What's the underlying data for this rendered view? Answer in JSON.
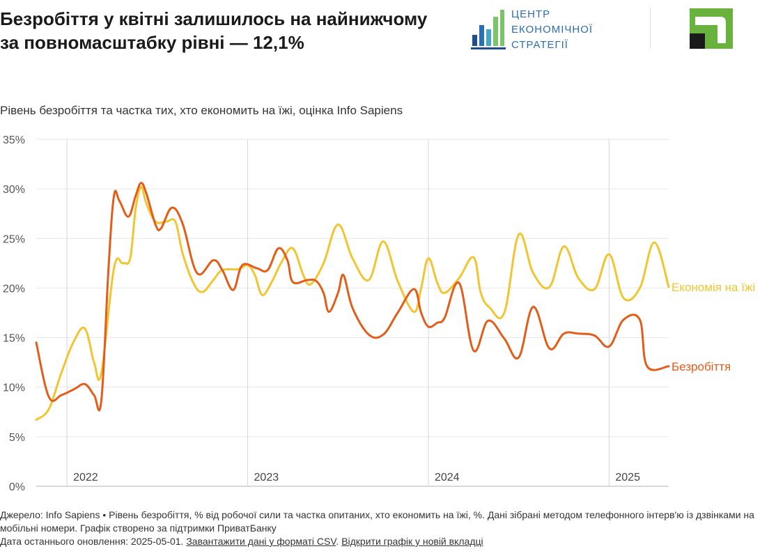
{
  "title": "Безробіття у квітні залишилось на найнижчому за повномасштабку рівні — 12,1%",
  "subtitle": "Рівень безробіття та частка тих, хто економить на їжі, оцінка Info Sapiens",
  "logo_cse": {
    "lines": [
      "ЦЕНТР",
      "ЕКОНОМІЧНОЇ",
      "СТРАТЕГІЇ"
    ],
    "color": "#2a6fb0",
    "bar_colors": [
      "#1f4e8c",
      "#2a6fb0",
      "#4aa3c8",
      "#7cc46b"
    ]
  },
  "logo_pb": {
    "name": "privatbank-logo",
    "color": "#6ab23e"
  },
  "footer": {
    "source": "Джерело: Info Sapiens • Рівень безробіття, % від робочої сили та частка опитаних, хто економить на їжі, %. Дані зібрані методом телефонного інтерв'ю із дзвінками на мобільні номери. Графік створено за підтримки ПриватБанку",
    "updated": "Дата останнього оновлення: 2025-05-01.",
    "download_link": "Завантажити дані у форматі CSV",
    "open_link": "Відкрити графік у новій вкладці"
  },
  "chart_data": {
    "type": "line",
    "title": "Безробіття у квітні залишилось на найнижчому за повномасштабку рівні — 12,1%",
    "subtitle": "Рівень безробіття та частка тих, хто економить на їжі, оцінка Info Sapiens",
    "xlim": [
      2021.83,
      2025.33
    ],
    "ylim": [
      0,
      35
    ],
    "y_ticks": [
      0,
      5,
      10,
      15,
      20,
      25,
      30,
      35
    ],
    "y_tick_labels": [
      "0%",
      "5%",
      "10%",
      "15%",
      "20%",
      "25%",
      "30%",
      "35%"
    ],
    "x_ticks": [
      2022,
      2023,
      2024,
      2025
    ],
    "x_tick_labels": [
      "2022",
      "2023",
      "2024",
      "2025"
    ],
    "grid": true,
    "legend": "direct labels at line ends (right)",
    "series": [
      {
        "name": "Економія на їжі",
        "color": "#f2c530",
        "points": [
          [
            2021.83,
            6.7
          ],
          [
            2021.9,
            7.8
          ],
          [
            2021.97,
            11.5
          ],
          [
            2022.04,
            14.7
          ],
          [
            2022.1,
            15.9
          ],
          [
            2022.15,
            12.5
          ],
          [
            2022.19,
            11.4
          ],
          [
            2022.26,
            22.0
          ],
          [
            2022.31,
            22.5
          ],
          [
            2022.35,
            23.0
          ],
          [
            2022.38,
            28.0
          ],
          [
            2022.41,
            30.2
          ],
          [
            2022.44,
            28.5
          ],
          [
            2022.49,
            26.7
          ],
          [
            2022.55,
            26.7
          ],
          [
            2022.6,
            26.7
          ],
          [
            2022.64,
            23.5
          ],
          [
            2022.7,
            20.5
          ],
          [
            2022.75,
            19.6
          ],
          [
            2022.81,
            20.8
          ],
          [
            2022.86,
            21.8
          ],
          [
            2022.95,
            21.9
          ],
          [
            2023.0,
            22.3
          ],
          [
            2023.04,
            21.3
          ],
          [
            2023.08,
            19.3
          ],
          [
            2023.13,
            20.5
          ],
          [
            2023.19,
            22.7
          ],
          [
            2023.25,
            24.0
          ],
          [
            2023.31,
            21.2
          ],
          [
            2023.35,
            20.4
          ],
          [
            2023.42,
            22.5
          ],
          [
            2023.5,
            26.4
          ],
          [
            2023.58,
            23.0
          ],
          [
            2023.67,
            20.8
          ],
          [
            2023.75,
            24.7
          ],
          [
            2023.83,
            20.7
          ],
          [
            2023.92,
            17.6
          ],
          [
            2023.96,
            20.0
          ],
          [
            2024.0,
            23.0
          ],
          [
            2024.05,
            20.5
          ],
          [
            2024.09,
            19.5
          ],
          [
            2024.17,
            21.0
          ],
          [
            2024.25,
            23.1
          ],
          [
            2024.29,
            19.5
          ],
          [
            2024.34,
            18.0
          ],
          [
            2024.42,
            17.5
          ],
          [
            2024.5,
            25.4
          ],
          [
            2024.58,
            21.5
          ],
          [
            2024.67,
            20.1
          ],
          [
            2024.75,
            24.2
          ],
          [
            2024.83,
            21.0
          ],
          [
            2024.92,
            19.9
          ],
          [
            2025.0,
            23.4
          ],
          [
            2025.08,
            19.0
          ],
          [
            2025.17,
            20.0
          ],
          [
            2025.25,
            24.6
          ],
          [
            2025.33,
            20.1
          ]
        ]
      },
      {
        "name": "Безробіття",
        "color": "#e25d19",
        "points": [
          [
            2021.83,
            14.5
          ],
          [
            2021.9,
            9.0
          ],
          [
            2021.97,
            9.2
          ],
          [
            2022.04,
            9.8
          ],
          [
            2022.1,
            10.3
          ],
          [
            2022.15,
            9.2
          ],
          [
            2022.19,
            8.6
          ],
          [
            2022.23,
            22.0
          ],
          [
            2022.26,
            29.3
          ],
          [
            2022.29,
            28.8
          ],
          [
            2022.34,
            27.2
          ],
          [
            2022.38,
            29.3
          ],
          [
            2022.41,
            30.6
          ],
          [
            2022.44,
            29.5
          ],
          [
            2022.49,
            26.4
          ],
          [
            2022.52,
            26.0
          ],
          [
            2022.58,
            28.1
          ],
          [
            2022.64,
            26.5
          ],
          [
            2022.72,
            21.5
          ],
          [
            2022.81,
            22.8
          ],
          [
            2022.86,
            21.8
          ],
          [
            2022.92,
            19.8
          ],
          [
            2022.97,
            22.3
          ],
          [
            2023.05,
            22.0
          ],
          [
            2023.11,
            21.8
          ],
          [
            2023.17,
            24.0
          ],
          [
            2023.22,
            22.8
          ],
          [
            2023.25,
            20.6
          ],
          [
            2023.33,
            20.8
          ],
          [
            2023.38,
            20.7
          ],
          [
            2023.42,
            19.5
          ],
          [
            2023.45,
            17.6
          ],
          [
            2023.5,
            19.5
          ],
          [
            2023.53,
            21.3
          ],
          [
            2023.58,
            18.0
          ],
          [
            2023.67,
            15.3
          ],
          [
            2023.75,
            15.3
          ],
          [
            2023.83,
            17.5
          ],
          [
            2023.92,
            19.9
          ],
          [
            2023.96,
            17.5
          ],
          [
            2024.0,
            16.1
          ],
          [
            2024.05,
            16.5
          ],
          [
            2024.09,
            17.0
          ],
          [
            2024.17,
            20.5
          ],
          [
            2024.25,
            13.7
          ],
          [
            2024.33,
            16.7
          ],
          [
            2024.42,
            14.9
          ],
          [
            2024.5,
            13.0
          ],
          [
            2024.58,
            18.1
          ],
          [
            2024.67,
            13.9
          ],
          [
            2024.75,
            15.4
          ],
          [
            2024.83,
            15.4
          ],
          [
            2024.92,
            15.2
          ],
          [
            2025.0,
            14.1
          ],
          [
            2025.08,
            16.8
          ],
          [
            2025.17,
            16.8
          ],
          [
            2025.21,
            12.1
          ],
          [
            2025.33,
            12.1
          ]
        ]
      }
    ]
  }
}
